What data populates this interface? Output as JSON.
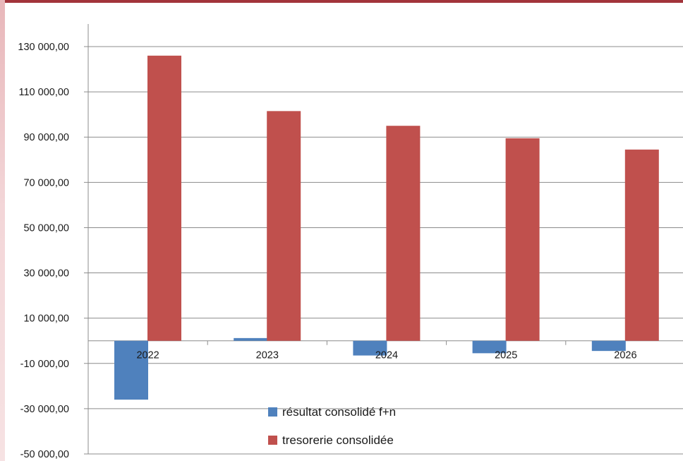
{
  "chart_data": {
    "type": "bar",
    "categories": [
      "2022",
      "2023",
      "2024",
      "2025",
      "2026"
    ],
    "series": [
      {
        "name": "résultat consolidé f+n",
        "color": "#4f81bd",
        "values": [
          -26000,
          1200,
          -6500,
          -5500,
          -4500
        ]
      },
      {
        "name": "tresorerie consolidée",
        "color": "#c0504d",
        "values": [
          126000,
          101500,
          95000,
          89500,
          84500
        ]
      }
    ],
    "ylim": [
      -50000,
      130000
    ],
    "y_ticks": [
      130000,
      110000,
      90000,
      70000,
      50000,
      30000,
      10000,
      -10000,
      -30000,
      -50000
    ],
    "y_tick_labels": [
      "130 000,00",
      "110 000,00",
      "90 000,00",
      "70 000,00",
      "50 000,00",
      "30 000,00",
      "10 000,00",
      "-10 000,00",
      "-30 000,00",
      "-50 000,00"
    ],
    "grid": true,
    "legend_position": "bottom-center"
  }
}
